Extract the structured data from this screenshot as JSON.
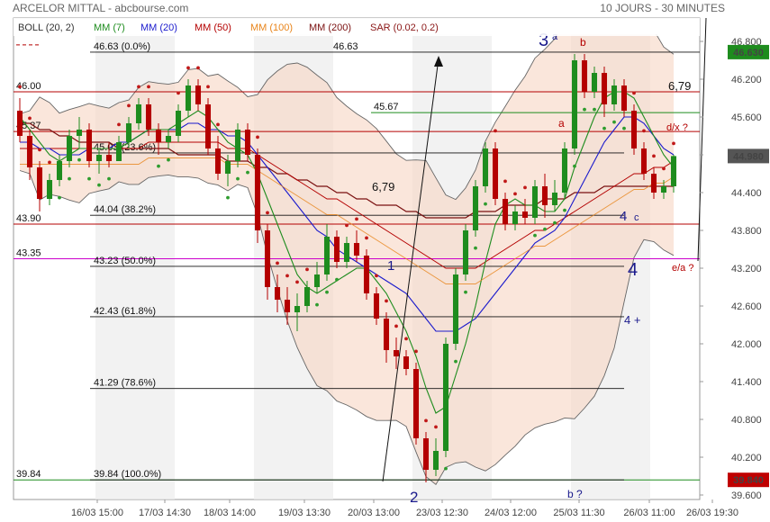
{
  "header": {
    "title": "ARCELOR MITTAL - abcbourse.com",
    "period": "10 JOURS - 30 MINUTES"
  },
  "legend": [
    {
      "label": "BOLL (20, 2)",
      "color": "#333333"
    },
    {
      "label": "MM (7)",
      "color": "#1e8c1e"
    },
    {
      "label": "MM (20)",
      "color": "#1a1acc"
    },
    {
      "label": "MM (50)",
      "color": "#b40000"
    },
    {
      "label": "MM (100)",
      "color": "#e8841a"
    },
    {
      "label": "MM (200)",
      "color": "#7a1010"
    },
    {
      "label": "SAR (0.02, 0.2)",
      "color": "#8a1515"
    }
  ],
  "chart_data": {
    "type": "candlestick",
    "y_axis": {
      "min": 39.6,
      "max": 46.8,
      "ticks": [
        "46.800",
        "46.200",
        "45.600",
        "45.000",
        "44.400",
        "43.800",
        "43.200",
        "42.600",
        "42.000",
        "41.400",
        "40.800",
        "40.200",
        "39.600"
      ],
      "side": "right"
    },
    "x_axis": {
      "ticks": [
        "16/03 15:00",
        "17/03 14:30",
        "18/03 14:00",
        "19/03 13:30",
        "20/03 13:00",
        "23/03 12:30",
        "24/03 12:00",
        "25/03 11:30",
        "26/03 11:00",
        "26/03 19:30"
      ]
    },
    "price_tags": [
      {
        "label": "46.630",
        "value": 46.63,
        "color": "#1e8c1e"
      },
      {
        "label": "44.980",
        "value": 44.98,
        "color": "#555555"
      },
      {
        "label": "39.840",
        "value": 39.84,
        "color": "#c00000"
      }
    ],
    "fibonacci": [
      {
        "price": "46.63",
        "label": "(0.0%)"
      },
      {
        "price": "45.03",
        "label": "(23.6%)"
      },
      {
        "price": "44.04",
        "label": "(38.2%)"
      },
      {
        "price": "43.23",
        "label": "(50.0%)"
      },
      {
        "price": "42.43",
        "label": "(61.8%)"
      },
      {
        "price": "41.29",
        "label": "(78.6%)"
      },
      {
        "price": "39.84",
        "label": "(100.0%)"
      }
    ],
    "horizontal_levels": [
      {
        "label": "46.00",
        "value": 46.0,
        "color": "#b40000"
      },
      {
        "label": "45.37",
        "value": 45.37,
        "color": "#b40000"
      },
      {
        "label": "43.90",
        "value": 43.9,
        "color": "#b40000"
      },
      {
        "label": "43.35",
        "value": 43.35,
        "color": "#cc00cc"
      },
      {
        "label": "39.84",
        "value": 39.84,
        "color": "#1e8c1e"
      },
      {
        "label": "46.63",
        "value": 46.63,
        "color": "#b40000"
      },
      {
        "label": "45.67",
        "value": 45.67,
        "color": "#1e8c1e"
      }
    ],
    "annotations": {
      "wave_3": "3",
      "wave_3_sub": "a",
      "wave_b_top": "b",
      "wave_a": "a",
      "target_679_right": "6,79",
      "target_679_left": "6,79",
      "dx": "d/x ?",
      "wave_4c": "4",
      "wave_4c_sub": "c",
      "wave_4": "4",
      "wave_4_plus": "4 +",
      "ea": "e/a ?",
      "wave_1": "1",
      "wave_2": "2",
      "wave_b_bottom": "b ?"
    },
    "candles": [
      [
        45.7,
        45.9,
        45.2,
        45.3
      ],
      [
        45.3,
        45.4,
        44.6,
        44.8
      ],
      [
        44.8,
        44.9,
        44.1,
        44.3
      ],
      [
        44.3,
        44.7,
        44.2,
        44.6
      ],
      [
        44.6,
        45.0,
        44.5,
        44.9
      ],
      [
        44.9,
        45.4,
        44.8,
        45.3
      ],
      [
        45.3,
        45.6,
        45.1,
        45.4
      ],
      [
        45.4,
        45.5,
        44.8,
        44.9
      ],
      [
        44.9,
        45.1,
        44.7,
        45.0
      ],
      [
        45.0,
        45.2,
        44.8,
        44.9
      ],
      [
        44.9,
        45.3,
        44.9,
        45.2
      ],
      [
        45.2,
        45.6,
        45.1,
        45.5
      ],
      [
        45.5,
        45.9,
        45.4,
        45.8
      ],
      [
        45.8,
        45.9,
        45.3,
        45.4
      ],
      [
        45.4,
        45.5,
        45.0,
        45.2
      ],
      [
        45.2,
        45.4,
        45.1,
        45.3
      ],
      [
        45.3,
        45.8,
        45.2,
        45.7
      ],
      [
        45.7,
        46.2,
        45.6,
        46.1
      ],
      [
        46.1,
        46.2,
        45.7,
        45.8
      ],
      [
        45.8,
        45.9,
        45.0,
        45.1
      ],
      [
        45.1,
        45.3,
        44.6,
        44.7
      ],
      [
        44.7,
        45.0,
        44.5,
        44.9
      ],
      [
        44.9,
        45.5,
        44.8,
        45.4
      ],
      [
        45.4,
        45.5,
        44.9,
        45.0
      ],
      [
        45.0,
        45.1,
        43.6,
        43.8
      ],
      [
        43.8,
        43.9,
        42.7,
        42.9
      ],
      [
        42.9,
        43.1,
        42.5,
        42.7
      ],
      [
        42.7,
        42.9,
        42.3,
        42.5
      ],
      [
        42.5,
        42.8,
        42.2,
        42.6
      ],
      [
        42.6,
        43.0,
        42.5,
        42.9
      ],
      [
        42.9,
        43.3,
        42.8,
        43.1
      ],
      [
        43.1,
        43.9,
        43.0,
        43.7
      ],
      [
        43.7,
        43.8,
        43.2,
        43.3
      ],
      [
        43.3,
        43.7,
        43.2,
        43.6
      ],
      [
        43.6,
        43.8,
        43.3,
        43.4
      ],
      [
        43.4,
        43.5,
        42.7,
        42.8
      ],
      [
        42.8,
        42.9,
        42.3,
        42.4
      ],
      [
        42.4,
        42.5,
        41.7,
        41.9
      ],
      [
        41.9,
        42.1,
        41.6,
        41.8
      ],
      [
        41.8,
        41.9,
        41.5,
        41.6
      ],
      [
        41.6,
        41.7,
        40.4,
        40.5
      ],
      [
        40.5,
        40.6,
        39.8,
        40.0
      ],
      [
        40.0,
        40.5,
        39.9,
        40.3
      ],
      [
        40.3,
        42.1,
        40.2,
        42.0
      ],
      [
        42.0,
        43.2,
        41.9,
        43.1
      ],
      [
        43.1,
        43.9,
        43.0,
        43.8
      ],
      [
        43.8,
        44.6,
        43.7,
        44.5
      ],
      [
        44.5,
        45.2,
        44.4,
        45.1
      ],
      [
        45.1,
        45.2,
        44.2,
        44.3
      ],
      [
        44.3,
        44.4,
        43.8,
        43.9
      ],
      [
        43.9,
        44.2,
        43.8,
        44.1
      ],
      [
        44.1,
        44.3,
        43.9,
        44.0
      ],
      [
        44.0,
        44.6,
        43.9,
        44.5
      ],
      [
        44.5,
        44.7,
        44.0,
        44.2
      ],
      [
        44.2,
        44.6,
        44.1,
        44.4
      ],
      [
        44.4,
        45.2,
        44.3,
        45.1
      ],
      [
        45.1,
        46.6,
        45.0,
        46.5
      ],
      [
        46.5,
        46.6,
        45.9,
        46.0
      ],
      [
        46.0,
        46.4,
        45.9,
        46.3
      ],
      [
        46.3,
        46.4,
        45.6,
        45.8
      ],
      [
        45.8,
        46.2,
        45.7,
        46.1
      ],
      [
        46.1,
        46.2,
        45.6,
        45.7
      ],
      [
        45.7,
        45.8,
        45.0,
        45.1
      ],
      [
        45.1,
        45.2,
        44.6,
        44.7
      ],
      [
        44.7,
        44.8,
        44.3,
        44.4
      ],
      [
        44.4,
        44.6,
        44.3,
        44.5
      ],
      [
        44.5,
        45.0,
        44.4,
        44.98
      ]
    ],
    "ma7": [
      45.6,
      45.4,
      45.2,
      45.0,
      44.9,
      45.0,
      45.1,
      45.1,
      45.1,
      45.1,
      45.1,
      45.2,
      45.3,
      45.4,
      45.4,
      45.4,
      45.5,
      45.6,
      45.7,
      45.6,
      45.4,
      45.2,
      45.1,
      45.0,
      44.7,
      44.3,
      43.9,
      43.5,
      43.1,
      42.9,
      42.8,
      42.9,
      43.0,
      43.1,
      43.2,
      43.2,
      43.0,
      42.8,
      42.5,
      42.2,
      41.8,
      41.3,
      40.9,
      41.0,
      41.5,
      42.0,
      42.6,
      43.3,
      43.9,
      44.2,
      44.3,
      44.2,
      44.2,
      44.1,
      44.1,
      44.3,
      44.8,
      45.2,
      45.6,
      45.9,
      46.0,
      46.0,
      45.9,
      45.6,
      45.3,
      45.0,
      44.8
    ],
    "ma20": [
      45.2,
      45.2,
      45.1,
      45.1,
      45.0,
      45.0,
      45.0,
      45.1,
      45.1,
      45.1,
      45.2,
      45.2,
      45.3,
      45.4,
      45.4,
      45.4,
      45.4,
      45.5,
      45.5,
      45.4,
      45.4,
      45.3,
      45.3,
      45.2,
      45.0,
      44.8,
      44.6,
      44.4,
      44.2,
      44.0,
      43.8,
      43.7,
      43.5,
      43.4,
      43.3,
      43.2,
      43.1,
      43.0,
      42.9,
      42.8,
      42.6,
      42.4,
      42.2,
      42.2,
      42.2,
      42.3,
      42.4,
      42.6,
      42.8,
      43.0,
      43.2,
      43.4,
      43.6,
      43.7,
      43.8,
      44.0,
      44.3,
      44.6,
      44.9,
      45.2,
      45.4,
      45.6,
      45.6,
      45.5,
      45.3,
      45.1,
      45.0
    ],
    "ma50": [
      45.1,
      45.1,
      45.1,
      45.1,
      45.1,
      45.1,
      45.1,
      45.1,
      45.1,
      45.1,
      45.1,
      45.1,
      45.1,
      45.2,
      45.2,
      45.2,
      45.2,
      45.2,
      45.2,
      45.2,
      45.2,
      45.1,
      45.1,
      45.1,
      45.0,
      44.9,
      44.8,
      44.7,
      44.6,
      44.5,
      44.4,
      44.3,
      44.3,
      44.2,
      44.1,
      44.0,
      43.9,
      43.8,
      43.7,
      43.6,
      43.5,
      43.4,
      43.3,
      43.2,
      43.2,
      43.2,
      43.2,
      43.3,
      43.4,
      43.5,
      43.6,
      43.7,
      43.8,
      43.8,
      43.9,
      44.0,
      44.1,
      44.2,
      44.3,
      44.4,
      44.5,
      44.6,
      44.7,
      44.7,
      44.8,
      44.8,
      44.9
    ],
    "ma200": [
      45.5,
      45.5,
      45.4,
      45.4,
      45.3,
      45.3,
      45.2,
      45.2,
      45.2,
      45.2,
      45.1,
      45.1,
      45.1,
      45.1,
      45.1,
      45.1,
      45.0,
      45.0,
      45.0,
      45.0,
      45.0,
      44.9,
      44.9,
      44.9,
      44.8,
      44.8,
      44.7,
      44.7,
      44.6,
      44.6,
      44.5,
      44.5,
      44.4,
      44.4,
      44.3,
      44.3,
      44.2,
      44.2,
      44.2,
      44.1,
      44.1,
      44.0,
      44.0,
      44.0,
      44.0,
      44.0,
      44.1,
      44.1,
      44.1,
      44.2,
      44.2,
      44.2,
      44.2,
      44.3,
      44.3,
      44.3,
      44.4,
      44.4,
      44.4,
      44.5,
      44.5,
      44.5,
      44.5,
      44.5,
      44.5,
      44.5,
      44.5
    ]
  }
}
